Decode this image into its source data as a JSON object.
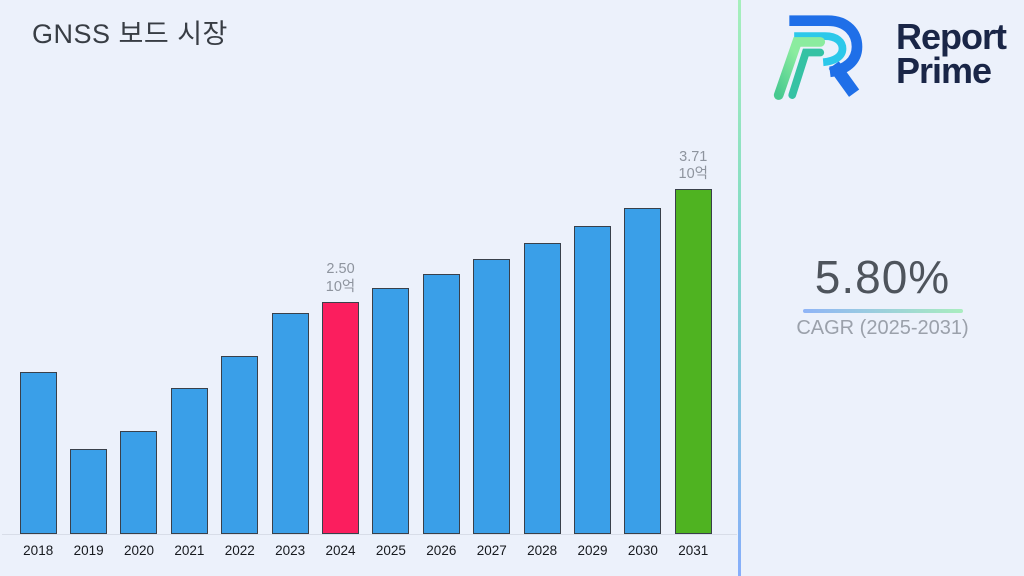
{
  "header": {
    "title": "GNSS 보드 시장"
  },
  "brand": {
    "name_line1": "Report",
    "name_line2": "Prime",
    "text_color": "#1A2647",
    "logo_colors": {
      "blue": "#1F6FE8",
      "cyan": "#2CC8EA",
      "light_green": "#8BEC9F",
      "teal": "#35C2A4"
    }
  },
  "cagr": {
    "value": "5.80%",
    "label": "CAGR (2025-2031)",
    "underline_gradient_left": "#8FB4F7",
    "underline_gradient_right": "#A9EDBF"
  },
  "divider": {
    "gradient_top": "#A6EFBC",
    "gradient_middle": "#7FD9C5",
    "gradient_bottom": "#87AEFB"
  },
  "chart_data": {
    "type": "bar",
    "title": "GNSS 보드 시장",
    "xlabel": "",
    "ylabel": "",
    "unit_label": "10억",
    "categories": [
      "2018",
      "2019",
      "2020",
      "2021",
      "2022",
      "2023",
      "2024",
      "2025",
      "2026",
      "2027",
      "2028",
      "2029",
      "2030",
      "2031"
    ],
    "values": [
      1.74,
      0.91,
      1.11,
      1.57,
      1.91,
      2.38,
      2.5,
      2.65,
      2.8,
      2.96,
      3.13,
      3.31,
      3.51,
      3.71
    ],
    "ylim": [
      0,
      4
    ],
    "grid": false,
    "legend_position": "none",
    "bar_color_default": "#3A9FE8",
    "bar_border_color": "#39404A",
    "highlights": {
      "2024": "#FB1E5E",
      "2031": "#4FB321"
    },
    "annotations": {
      "2024": {
        "value": "2.50",
        "unit": "10억"
      },
      "2031": {
        "value": "3.71",
        "unit": "10억"
      }
    },
    "annotation_color": "#8E949E"
  }
}
